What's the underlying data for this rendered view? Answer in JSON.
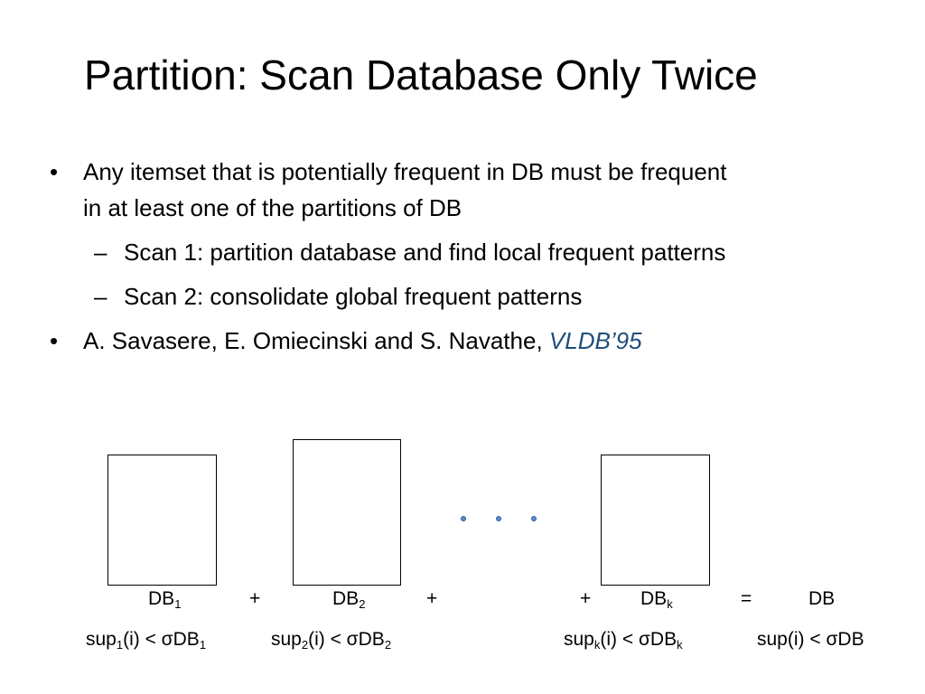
{
  "slide": {
    "title": "Partition: Scan Database Only Twice",
    "bullets": [
      {
        "line1": "Any itemset that is potentially frequent in DB must be frequent",
        "line2": "in at least one of the partitions of DB",
        "subs": [
          "Scan 1: partition database and find local frequent patterns",
          "Scan 2: consolidate global frequent patterns"
        ]
      },
      {
        "text": "A. Savasere, E. Omiecinski and S. Navathe, ",
        "citation": "VLDB’95"
      }
    ],
    "bullet_symbol": "•",
    "dash_symbol": "–"
  },
  "diagram": {
    "db1": {
      "base": "DB",
      "sub": "1"
    },
    "db2": {
      "base": "DB",
      "sub": "2"
    },
    "dbk": {
      "base": "DB",
      "sub": "k"
    },
    "db": "DB",
    "plus": "+",
    "equals": "=",
    "sup1": {
      "a": "sup",
      "a_sub": "1",
      "b": "(i) < σDB",
      "b_sub": "1"
    },
    "sup2": {
      "a": "sup",
      "a_sub": "2",
      "b": "(i) < σDB",
      "b_sub": "2"
    },
    "supk": {
      "a": "sup",
      "a_sub": "k",
      "b": "(i) < σDB",
      "b_sub": "k"
    },
    "sup": "sup(i) < σDB",
    "dot_color": "#5b8bc9"
  }
}
